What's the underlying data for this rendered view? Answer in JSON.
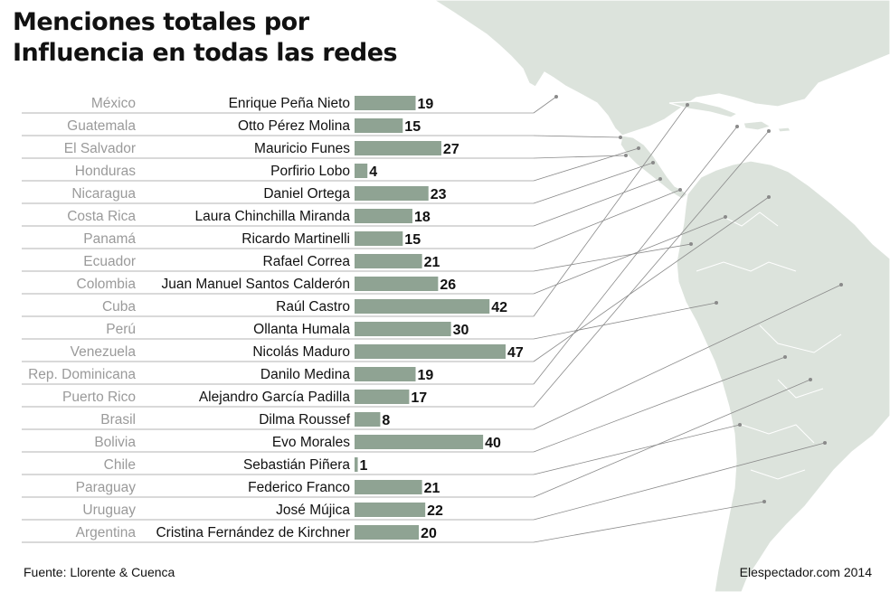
{
  "title_lines": [
    "Menciones totales por",
    "Influencia en todas las redes"
  ],
  "source": "Fuente: Llorente & Cuenca",
  "credit": "Elespectador.com 2014",
  "colors": {
    "bar": "#8fa393",
    "map_land": "#dce3dc",
    "map_border": "#ffffff",
    "leader": "#8a8a8a",
    "country_text": "#9a9a9a"
  },
  "chart_data": {
    "type": "bar",
    "orientation": "horizontal",
    "xlim": [
      0,
      47
    ],
    "grid": false,
    "legend": "none",
    "rows": [
      {
        "country": "México",
        "person": "Enrique Peña Nieto",
        "value": 19
      },
      {
        "country": "Guatemala",
        "person": "Otto Pérez Molina",
        "value": 15
      },
      {
        "country": "El Salvador",
        "person": "Mauricio Funes",
        "value": 27
      },
      {
        "country": "Honduras",
        "person": "Porfirio Lobo",
        "value": 4
      },
      {
        "country": "Nicaragua",
        "person": "Daniel Ortega",
        "value": 23
      },
      {
        "country": "Costa Rica",
        "person": "Laura Chinchilla Miranda",
        "value": 18
      },
      {
        "country": "Panamá",
        "person": "Ricardo Martinelli",
        "value": 15
      },
      {
        "country": "Ecuador",
        "person": "Rafael Correa",
        "value": 21
      },
      {
        "country": "Colombia",
        "person": "Juan Manuel Santos Calderón",
        "value": 26
      },
      {
        "country": "Cuba",
        "person": "Raúl Castro",
        "value": 42
      },
      {
        "country": "Perú",
        "person": "Ollanta Humala",
        "value": 30
      },
      {
        "country": "Venezuela",
        "person": "Nicolás Maduro",
        "value": 47
      },
      {
        "country": "Rep. Dominicana",
        "person": "Danilo Medina",
        "value": 19
      },
      {
        "country": "Puerto Rico",
        "person": "Alejandro García Padilla",
        "value": 17
      },
      {
        "country": "Brasil",
        "person": "Dilma Roussef",
        "value": 8
      },
      {
        "country": "Bolivia",
        "person": "Evo Morales",
        "value": 40
      },
      {
        "country": "Chile",
        "person": "Sebastián Piñera",
        "value": 1
      },
      {
        "country": "Paraguay",
        "person": "Federico Franco",
        "value": 21
      },
      {
        "country": "Uruguay",
        "person": "José Mújica",
        "value": 22
      },
      {
        "country": "Argentina",
        "person": "Cristina Fernández de Kirchner",
        "value": 20
      }
    ]
  }
}
